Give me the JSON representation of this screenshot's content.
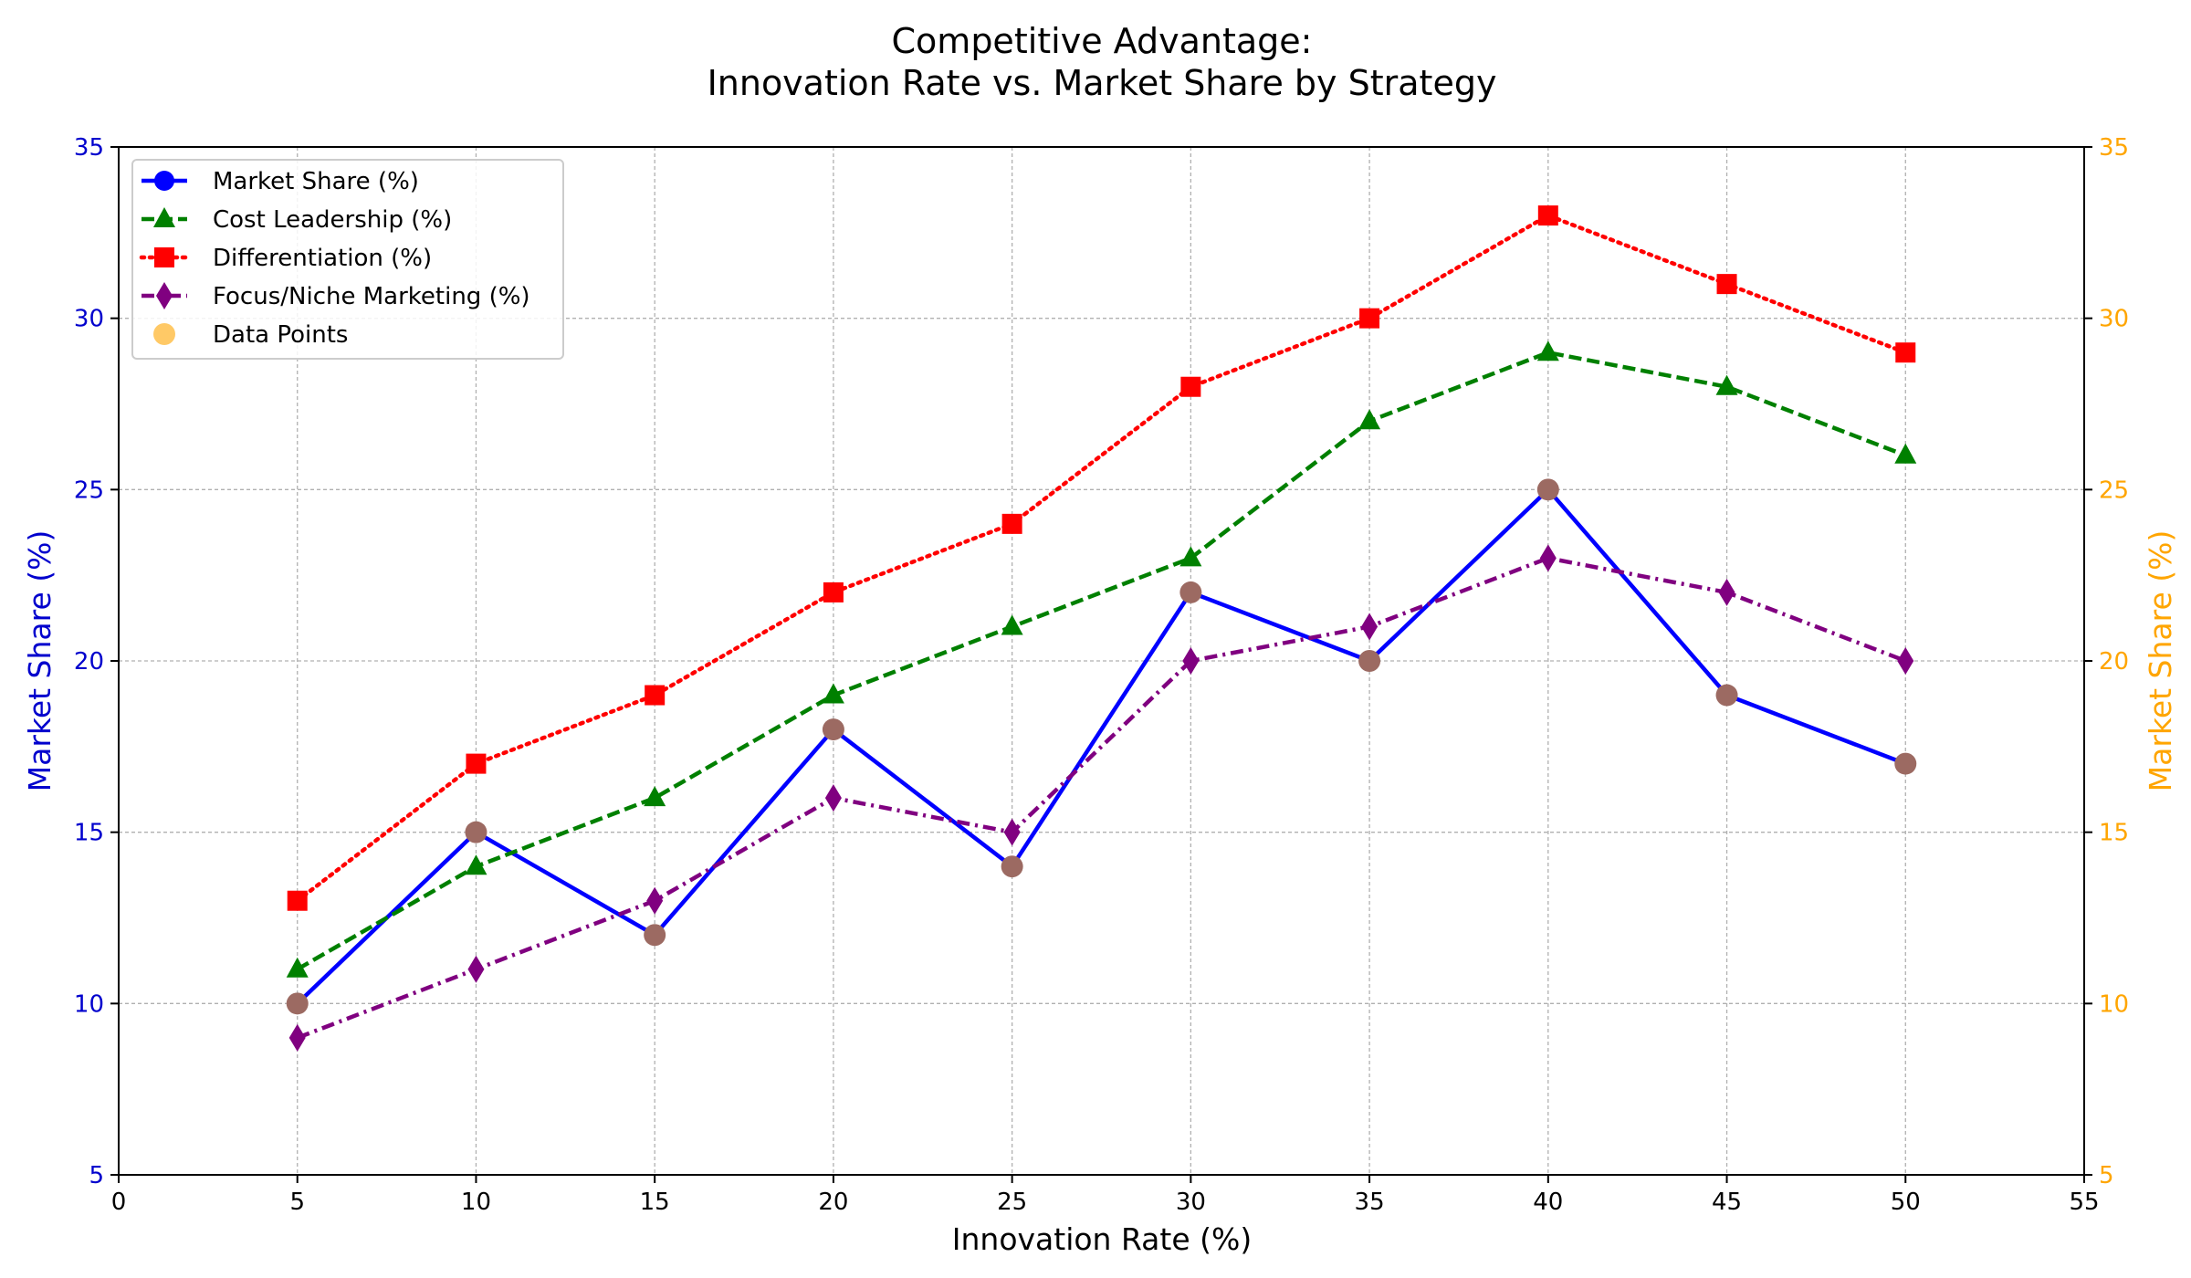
{
  "chart_data": {
    "type": "line",
    "title_line1": "Competitive Advantage:",
    "title_line2": "Innovation Rate vs. Market Share by Strategy",
    "xlabel": "Innovation Rate (%)",
    "ylabel_left": "Market Share (%)",
    "ylabel_right": "Market Share (%)",
    "xlim": [
      0,
      55
    ],
    "ylim": [
      5,
      35
    ],
    "x_ticks": [
      0,
      5,
      10,
      15,
      20,
      25,
      30,
      35,
      40,
      45,
      50,
      55
    ],
    "y_ticks": [
      5,
      10,
      15,
      20,
      25,
      30,
      35
    ],
    "grid": true,
    "legend_position": "top-left",
    "x": [
      5,
      10,
      15,
      20,
      25,
      30,
      35,
      40,
      45,
      50
    ],
    "series": [
      {
        "key": "market",
        "name": "Market Share (%)",
        "color": "#0000ff",
        "values": [
          10,
          15,
          12,
          18,
          14,
          22,
          20,
          25,
          19,
          17
        ],
        "line_style": "solid",
        "marker": "circle"
      },
      {
        "key": "cost",
        "name": "Cost Leadership (%)",
        "color": "#008000",
        "values": [
          11,
          14,
          16,
          19,
          21,
          23,
          27,
          29,
          28,
          26
        ],
        "line_style": "dashed",
        "marker": "triangle"
      },
      {
        "key": "diff",
        "name": "Differentiation (%)",
        "color": "#ff0000",
        "values": [
          13,
          17,
          19,
          22,
          24,
          28,
          30,
          33,
          31,
          29
        ],
        "line_style": "dotted",
        "marker": "square"
      },
      {
        "key": "focus",
        "name": "Focus/Niche Marketing (%)",
        "color": "#800080",
        "values": [
          9,
          11,
          13,
          16,
          15,
          20,
          21,
          23,
          22,
          20
        ],
        "line_style": "dashdot",
        "marker": "diamond"
      }
    ],
    "scatter": {
      "name": "Data Points",
      "color": "#ffa500",
      "values": [
        10,
        15,
        12,
        18,
        14,
        22,
        20,
        25,
        19,
        17
      ]
    },
    "left_axis_color": "#0000cd",
    "right_axis_color": "#ffa500",
    "points_overlay_color": "#9c6a62"
  }
}
